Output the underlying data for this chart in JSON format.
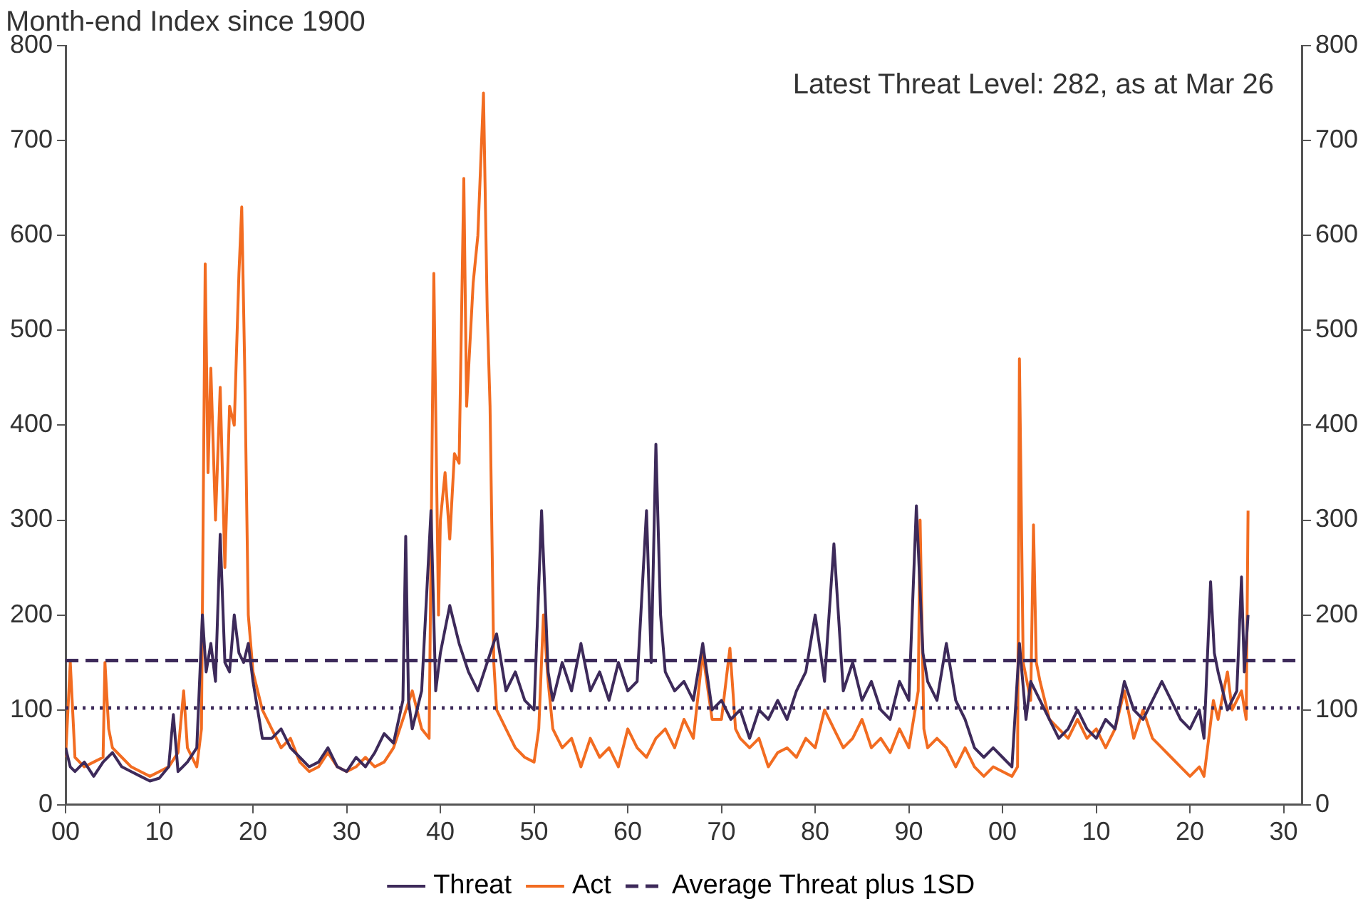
{
  "chart_data": {
    "type": "line",
    "ylabel": "Month-end Index since 1900",
    "annotations": [
      "Latest Threat Level: 282, as at Mar 26"
    ],
    "xlim": [
      1900,
      2032
    ],
    "xticks": [
      {
        "value": 1900,
        "label": "00"
      },
      {
        "value": 1910,
        "label": "10"
      },
      {
        "value": 1920,
        "label": "20"
      },
      {
        "value": 1930,
        "label": "30"
      },
      {
        "value": 1940,
        "label": "40"
      },
      {
        "value": 1950,
        "label": "50"
      },
      {
        "value": 1960,
        "label": "60"
      },
      {
        "value": 1970,
        "label": "70"
      },
      {
        "value": 1980,
        "label": "80"
      },
      {
        "value": 1990,
        "label": "90"
      },
      {
        "value": 2000,
        "label": "00"
      },
      {
        "value": 2010,
        "label": "10"
      },
      {
        "value": 2020,
        "label": "20"
      },
      {
        "value": 2030,
        "label": "30"
      }
    ],
    "ylim": [
      0,
      800
    ],
    "yticks": [
      0,
      100,
      200,
      300,
      400,
      500,
      600,
      700,
      800
    ],
    "y2lim": [
      0,
      800
    ],
    "y2ticks": [
      0,
      100,
      200,
      300,
      400,
      500,
      600,
      700,
      800
    ],
    "grid": false,
    "legend": "bottom",
    "marker": "none",
    "line_style": "solid",
    "ref_lines": [
      {
        "axis": "y",
        "value": 152,
        "label": "Average Threat plus 1SD",
        "color": "#3d2a5a",
        "line_style": "dashed"
      },
      {
        "axis": "y",
        "value": 102,
        "color": "#3d2a5a",
        "line_style": "dotted"
      }
    ],
    "series": [
      {
        "name": "Threat",
        "color": "#3d2a5a",
        "x": [
          1900,
          1900.5,
          1901,
          1902,
          1903,
          1904,
          1905,
          1906,
          1907,
          1908,
          1909,
          1910,
          1911,
          1911.5,
          1912,
          1913,
          1914,
          1914.6,
          1915,
          1915.5,
          1916,
          1916.5,
          1917,
          1917.5,
          1918,
          1918.5,
          1919,
          1919.5,
          1920,
          1921,
          1922,
          1923,
          1924,
          1925,
          1926,
          1927,
          1928,
          1929,
          1930,
          1931,
          1932,
          1933,
          1934,
          1935,
          1936,
          1936.3,
          1936.6,
          1937,
          1938,
          1939,
          1939.5,
          1940,
          1941,
          1942,
          1943,
          1944,
          1945,
          1946,
          1947,
          1948,
          1949,
          1950,
          1950.8,
          1951.5,
          1952,
          1953,
          1954,
          1955,
          1956,
          1957,
          1958,
          1959,
          1960,
          1961,
          1962,
          1962.5,
          1963,
          1963.5,
          1964,
          1965,
          1966,
          1967,
          1968,
          1969,
          1970,
          1971,
          1972,
          1973,
          1974,
          1975,
          1976,
          1977,
          1978,
          1979,
          1980,
          1981,
          1982,
          1983,
          1984,
          1985,
          1986,
          1987,
          1988,
          1989,
          1990,
          1990.8,
          1991.5,
          1992,
          1993,
          1994,
          1995,
          1996,
          1997,
          1998,
          1999,
          2000,
          2001,
          2001.8,
          2002.5,
          2003,
          2004,
          2005,
          2006,
          2007,
          2008,
          2009,
          2010,
          2011,
          2012,
          2013,
          2014,
          2015,
          2016,
          2017,
          2018,
          2019,
          2020,
          2021,
          2021.5,
          2022.2,
          2022.6,
          2023,
          2024,
          2025,
          2025.5,
          2025.8,
          2026.2
        ],
        "values": [
          60,
          40,
          35,
          45,
          30,
          45,
          55,
          40,
          35,
          30,
          25,
          28,
          40,
          95,
          35,
          45,
          60,
          200,
          140,
          170,
          130,
          285,
          150,
          140,
          200,
          160,
          150,
          170,
          130,
          70,
          70,
          80,
          60,
          50,
          40,
          45,
          60,
          40,
          35,
          50,
          40,
          55,
          75,
          65,
          110,
          283,
          110,
          80,
          120,
          310,
          120,
          160,
          210,
          170,
          140,
          120,
          150,
          180,
          120,
          140,
          110,
          100,
          310,
          140,
          110,
          150,
          120,
          170,
          120,
          140,
          110,
          150,
          120,
          130,
          310,
          150,
          380,
          200,
          140,
          120,
          130,
          110,
          170,
          100,
          110,
          90,
          100,
          70,
          100,
          90,
          110,
          90,
          120,
          140,
          200,
          130,
          275,
          120,
          150,
          110,
          130,
          100,
          90,
          130,
          110,
          315,
          160,
          130,
          110,
          170,
          110,
          90,
          60,
          50,
          60,
          50,
          40,
          170,
          90,
          130,
          110,
          90,
          70,
          80,
          100,
          80,
          70,
          90,
          80,
          130,
          100,
          90,
          110,
          130,
          110,
          90,
          80,
          100,
          70,
          235,
          160,
          140,
          100,
          120,
          240,
          140,
          200
        ]
      },
      {
        "name": "Act",
        "color": "#f26c21",
        "x": [
          1900,
          1900.5,
          1901,
          1902,
          1903,
          1904,
          1904.2,
          1904.6,
          1905,
          1906,
          1907,
          1908,
          1909,
          1910,
          1911,
          1912,
          1912.6,
          1913,
          1914,
          1914.5,
          1914.9,
          1915.2,
          1915.5,
          1916,
          1916.5,
          1917,
          1917.5,
          1918,
          1918.5,
          1918.8,
          1919.1,
          1919.5,
          1920,
          1921,
          1922,
          1923,
          1924,
          1925,
          1926,
          1927,
          1928,
          1929,
          1930,
          1931,
          1932,
          1933,
          1934,
          1935,
          1936,
          1937,
          1938,
          1938.8,
          1939.3,
          1939.8,
          1940,
          1940.5,
          1941,
          1941.5,
          1942,
          1942.5,
          1942.8,
          1943.5,
          1944,
          1944.6,
          1945,
          1945.3,
          1945.7,
          1946,
          1947,
          1948,
          1949,
          1950,
          1950.5,
          1951,
          1951.5,
          1952,
          1953,
          1954,
          1955,
          1956,
          1957,
          1958,
          1959,
          1960,
          1961,
          1962,
          1963,
          1964,
          1965,
          1966,
          1967,
          1968,
          1969,
          1970,
          1970.9,
          1971.5,
          1972,
          1973,
          1974,
          1975,
          1976,
          1977,
          1978,
          1979,
          1980,
          1981,
          1982,
          1983,
          1984,
          1985,
          1986,
          1987,
          1988,
          1989,
          1990,
          1991,
          1991.2,
          1991.6,
          1992,
          1993,
          1994,
          1995,
          1996,
          1997,
          1998,
          1999,
          2000,
          2001,
          2001.6,
          2001.8,
          2002.2,
          2003,
          2003.3,
          2003.6,
          2004,
          2005,
          2006,
          2007,
          2008,
          2009,
          2010,
          2011,
          2012,
          2013,
          2014,
          2015,
          2016,
          2017,
          2018,
          2019,
          2020,
          2021,
          2021.5,
          2022,
          2022.5,
          2023,
          2024,
          2024.5,
          2025,
          2025.5,
          2026,
          2026.2
        ],
        "values": [
          50,
          150,
          50,
          40,
          45,
          50,
          150,
          80,
          60,
          50,
          40,
          35,
          30,
          35,
          40,
          55,
          120,
          60,
          40,
          80,
          570,
          350,
          460,
          300,
          440,
          250,
          420,
          400,
          560,
          630,
          470,
          200,
          140,
          100,
          80,
          60,
          70,
          45,
          35,
          40,
          55,
          40,
          35,
          40,
          50,
          40,
          45,
          60,
          90,
          120,
          80,
          70,
          560,
          200,
          300,
          350,
          280,
          370,
          360,
          660,
          420,
          550,
          600,
          750,
          520,
          420,
          150,
          100,
          80,
          60,
          50,
          45,
          80,
          200,
          130,
          80,
          60,
          70,
          40,
          70,
          50,
          60,
          40,
          80,
          60,
          50,
          70,
          80,
          60,
          90,
          70,
          160,
          90,
          90,
          165,
          80,
          70,
          60,
          70,
          40,
          55,
          60,
          50,
          70,
          60,
          100,
          80,
          60,
          70,
          90,
          60,
          70,
          55,
          80,
          60,
          120,
          300,
          80,
          60,
          70,
          60,
          40,
          60,
          40,
          30,
          40,
          35,
          30,
          40,
          470,
          150,
          110,
          295,
          150,
          130,
          90,
          80,
          70,
          90,
          70,
          80,
          60,
          80,
          120,
          70,
          100,
          70,
          60,
          50,
          40,
          30,
          40,
          30,
          70,
          110,
          90,
          140,
          100,
          110,
          120,
          90,
          310
        ]
      }
    ]
  }
}
